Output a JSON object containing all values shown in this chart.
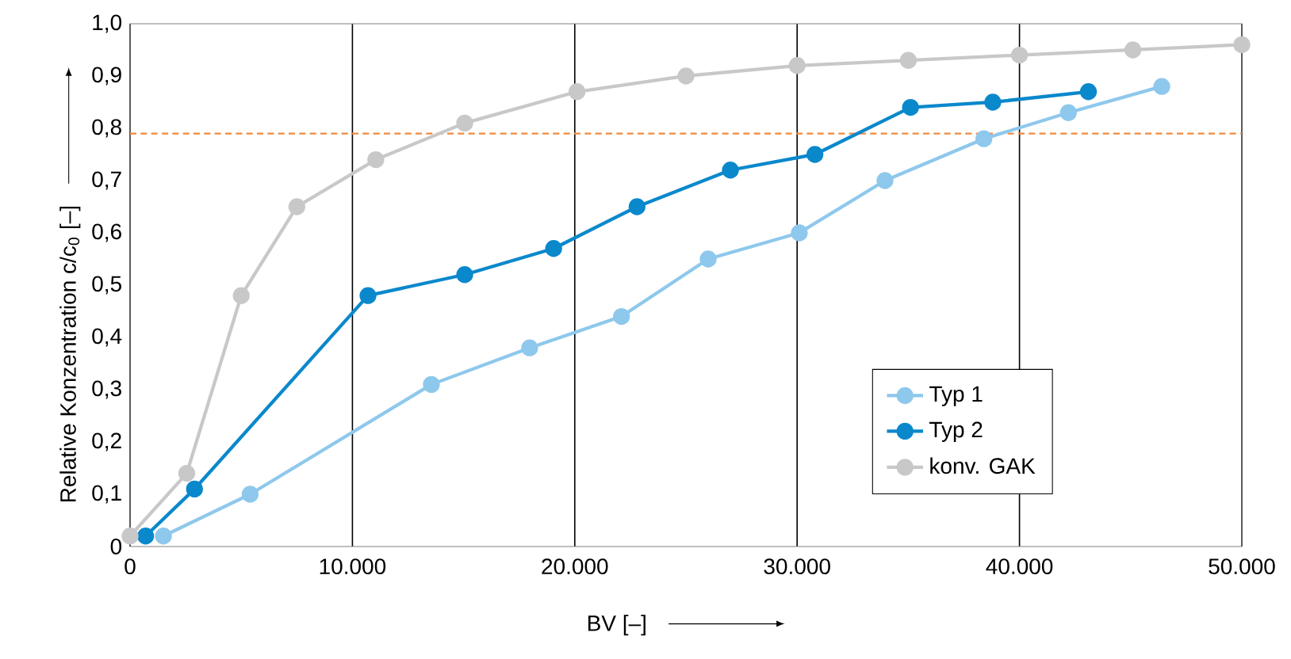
{
  "chart_data": {
    "type": "line",
    "xlabel": "BV [–]",
    "ylabel": "Relative Konzentration c/c$_{0}$ [–]",
    "series": [
      {
        "name": "Typ 1",
        "color": "#8ec8ec",
        "x": [
          1500,
          5400,
          13550,
          17970,
          22100,
          26000,
          30100,
          33950,
          38400,
          42200,
          46400
        ],
        "values": [
          0.02,
          0.1,
          0.31,
          0.38,
          0.44,
          0.55,
          0.6,
          0.7,
          0.78,
          0.83,
          0.88
        ]
      },
      {
        "name": "Typ 2",
        "color": "#0a88cc",
        "x": [
          700,
          2900,
          10700,
          15050,
          19050,
          22800,
          27000,
          30800,
          35100,
          38800,
          43100
        ],
        "values": [
          0.02,
          0.11,
          0.48,
          0.52,
          0.57,
          0.65,
          0.72,
          0.75,
          0.84,
          0.85,
          0.87
        ]
      },
      {
        "name": "konv. GAK",
        "color": "#c8c8c8",
        "x": [
          0,
          2550,
          5000,
          7500,
          11050,
          15050,
          20100,
          25000,
          30000,
          35000,
          40000,
          45100,
          50000
        ],
        "values": [
          0.02,
          0.14,
          0.48,
          0.65,
          0.74,
          0.81,
          0.87,
          0.9,
          0.92,
          0.93,
          0.94,
          0.95,
          0.96
        ]
      }
    ],
    "ref_lines": [
      {
        "axis": "y",
        "value": 0.79,
        "color": "#f08a3c",
        "line_style": "dashed"
      }
    ],
    "xlim": [
      0,
      50000
    ],
    "ylim": [
      0,
      1.0
    ],
    "xticks": [
      0,
      {
        "value": 10000,
        "label": "10.000"
      },
      {
        "value": 20000,
        "label": "20.000"
      },
      {
        "value": 30000,
        "label": "30.000"
      },
      {
        "value": 40000,
        "label": "40.000"
      },
      {
        "value": 50000,
        "label": "50.000"
      }
    ],
    "yticks": [
      0,
      {
        "value": 0.1,
        "label": "0,1"
      },
      {
        "value": 0.2,
        "label": "0,2"
      },
      {
        "value": 0.3,
        "label": "0,3"
      },
      {
        "value": 0.4,
        "label": "0,4"
      },
      {
        "value": 0.5,
        "label": "0,5"
      },
      {
        "value": 0.6,
        "label": "0,6"
      },
      {
        "value": 0.7,
        "label": "0,7"
      },
      {
        "value": 0.8,
        "label": "0,8"
      },
      {
        "value": 0.9,
        "label": "0,9"
      },
      {
        "value": 1.0,
        "label": "1,0"
      }
    ],
    "grid": "x",
    "legend": "bottom right",
    "marker": "circle",
    "line_style": "solid"
  }
}
